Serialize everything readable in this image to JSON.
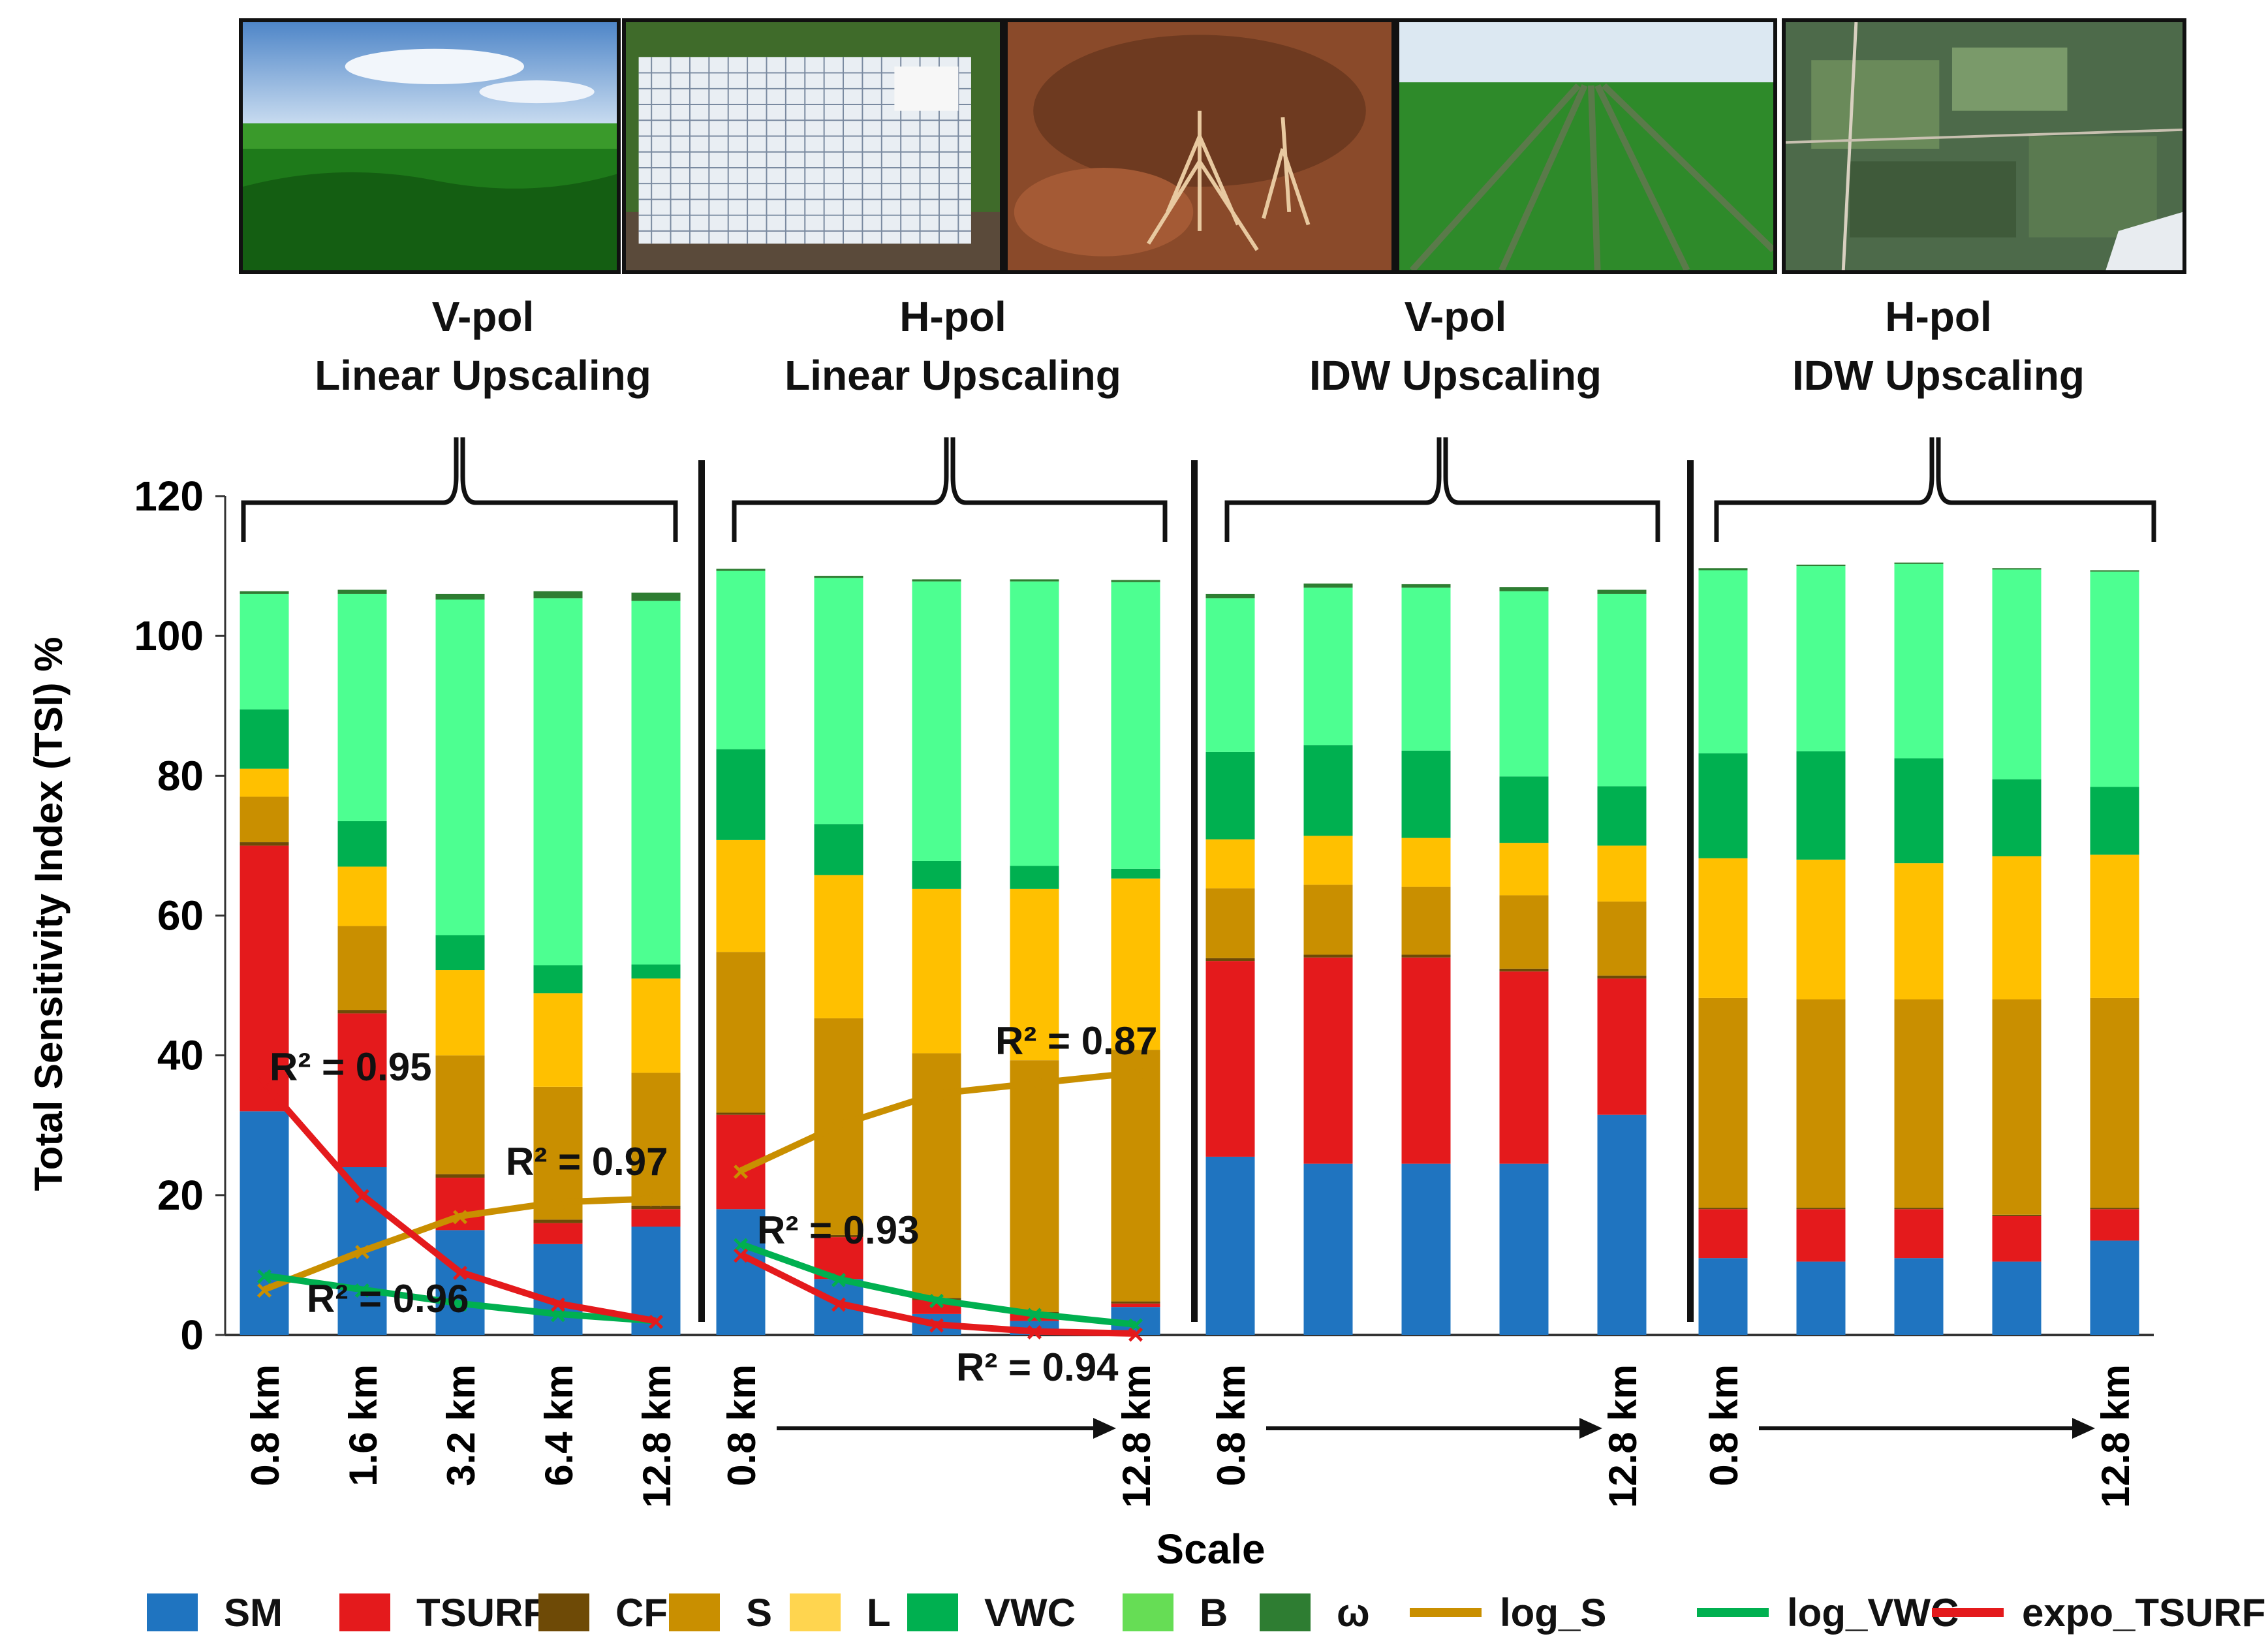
{
  "photos": [
    {
      "name": "corn-field-photo",
      "desc": "corn field"
    },
    {
      "name": "soil-grid-board-photo",
      "desc": "grid board"
    },
    {
      "name": "root-soil-photo",
      "desc": "roots in soil"
    },
    {
      "name": "soybean-rows-photo",
      "desc": "soybean rows"
    },
    {
      "name": "aerial-fields-photo",
      "desc": "aerial fields"
    }
  ],
  "headers": [
    {
      "line1": "V-pol",
      "line2": "Linear Upscaling"
    },
    {
      "line1": "H-pol",
      "line2": "Linear Upscaling"
    },
    {
      "line1": "V-pol",
      "line2": "IDW Upscaling"
    },
    {
      "line1": "H-pol",
      "line2": "IDW Upscaling"
    }
  ],
  "chart_data": {
    "type": "bar",
    "stacked": true,
    "ylabel": "Total Sensitivity Index (TSI) %",
    "xlabel": "Scale",
    "ylim": [
      0,
      120
    ],
    "yticks": [
      0,
      20,
      40,
      60,
      80,
      100,
      120
    ],
    "components": [
      "SM",
      "TSURF",
      "CF",
      "S",
      "L",
      "VWC",
      "B",
      "ω"
    ],
    "colors": {
      "SM": "#1f74c0",
      "TSURF": "#e41a1c",
      "CF": "#6e4a06",
      "S": "#c98f00",
      "L": "#ffc000",
      "VWC": "#00b050",
      "B": "#4dff91",
      "ω": "#2e7d32"
    },
    "panels": [
      {
        "title": "V-pol Linear Upscaling",
        "categories": [
          "0.8 km",
          "1.6 km",
          "3.2 km",
          "6.4 km",
          "12.8 km"
        ],
        "stacks": [
          {
            "SM": 32,
            "TSURF": 38,
            "CF": 0.5,
            "S": 6.5,
            "L": 4,
            "VWC": 8.5,
            "B": 16.5,
            "ω": 0.4
          },
          {
            "SM": 24,
            "TSURF": 22,
            "CF": 0.5,
            "S": 12,
            "L": 8.5,
            "VWC": 6.5,
            "B": 32.5,
            "ω": 0.6
          },
          {
            "SM": 15,
            "TSURF": 7.5,
            "CF": 0.5,
            "S": 17,
            "L": 12.2,
            "VWC": 5,
            "B": 48,
            "ω": 0.8
          },
          {
            "SM": 13,
            "TSURF": 3,
            "CF": 0.5,
            "S": 19,
            "L": 13.4,
            "VWC": 4,
            "B": 52.5,
            "ω": 1
          },
          {
            "SM": 15.5,
            "TSURF": 2.5,
            "CF": 0.5,
            "S": 19,
            "L": 13.5,
            "VWC": 2,
            "B": 52,
            "ω": 1.2
          }
        ],
        "fits": [
          {
            "name": "log_S",
            "color": "#c98f00",
            "points": [
              6.5,
              12,
              17,
              19,
              19.5
            ],
            "r2_label": "R² = 0.97"
          },
          {
            "name": "log_VWC",
            "color": "#00b050",
            "points": [
              8.5,
              6.5,
              4.5,
              3,
              2
            ],
            "r2_label": "R² = 0.96"
          },
          {
            "name": "expo_TSURF",
            "color": "#e41a1c",
            "points": [
              36,
              20,
              9,
              4.5,
              2
            ],
            "r2_label": "R² = 0.95"
          }
        ],
        "xticks": [
          "0.8 km",
          "1.6 km",
          "3.2 km",
          "6.4 km",
          "12.8 km"
        ],
        "arrow": false
      },
      {
        "title": "H-pol Linear Upscaling",
        "categories": [
          "0.8 km",
          "",
          "",
          "",
          "12.8 km"
        ],
        "stacks": [
          {
            "SM": 18,
            "TSURF": 13.5,
            "CF": 0.3,
            "S": 23,
            "L": 16,
            "VWC": 13,
            "B": 25.5,
            "ω": 0.3
          },
          {
            "SM": 8,
            "TSURF": 6,
            "CF": 0.3,
            "S": 31,
            "L": 20.5,
            "VWC": 7.3,
            "B": 35.2,
            "ω": 0.3
          },
          {
            "SM": 3,
            "TSURF": 2,
            "CF": 0.3,
            "S": 35,
            "L": 23.5,
            "VWC": 4,
            "B": 40,
            "ω": 0.3
          },
          {
            "SM": 2,
            "TSURF": 1,
            "CF": 0.3,
            "S": 36,
            "L": 24.5,
            "VWC": 3.3,
            "B": 40.7,
            "ω": 0.3
          },
          {
            "SM": 4,
            "TSURF": 0.5,
            "CF": 0.3,
            "S": 36,
            "L": 24.5,
            "VWC": 1.4,
            "B": 41,
            "ω": 0.3
          }
        ],
        "fits": [
          {
            "name": "log_S",
            "color": "#c98f00",
            "points": [
              23.5,
              30,
              34.5,
              36,
              37.5
            ],
            "r2_label": "R² = 0.87"
          },
          {
            "name": "log_VWC",
            "color": "#00b050",
            "points": [
              13,
              8,
              5,
              3,
              1.5
            ],
            "r2_label": "R² = 0.93"
          },
          {
            "name": "expo_TSURF",
            "color": "#e41a1c",
            "points": [
              11.5,
              4.5,
              1.5,
              0.5,
              0.2
            ],
            "r2_label": "R² = 0.94"
          }
        ],
        "xticks": [
          "0.8 km",
          "12.8 km"
        ],
        "arrow": true
      },
      {
        "title": "V-pol IDW Upscaling",
        "categories": [
          "0.8 km",
          "",
          "",
          "",
          "12.8 km"
        ],
        "stacks": [
          {
            "SM": 25.5,
            "TSURF": 28,
            "CF": 0.4,
            "S": 10,
            "L": 7,
            "VWC": 12.5,
            "B": 22,
            "ω": 0.6
          },
          {
            "SM": 24.5,
            "TSURF": 29.5,
            "CF": 0.4,
            "S": 10,
            "L": 7,
            "VWC": 13,
            "B": 22.5,
            "ω": 0.6
          },
          {
            "SM": 24.5,
            "TSURF": 29.5,
            "CF": 0.4,
            "S": 9.7,
            "L": 7,
            "VWC": 12.5,
            "B": 23.3,
            "ω": 0.5
          },
          {
            "SM": 24.5,
            "TSURF": 27.5,
            "CF": 0.4,
            "S": 10.5,
            "L": 7.5,
            "VWC": 9.5,
            "B": 26.5,
            "ω": 0.6
          },
          {
            "SM": 31.5,
            "TSURF": 19.5,
            "CF": 0.4,
            "S": 10.6,
            "L": 8,
            "VWC": 8.5,
            "B": 27.5,
            "ω": 0.6
          }
        ],
        "fits": [],
        "xticks": [
          "0.8 km",
          "12.8 km"
        ],
        "arrow": true
      },
      {
        "title": "H-pol IDW Upscaling",
        "categories": [
          "0.8 km",
          "",
          "",
          "",
          "12.8 km"
        ],
        "stacks": [
          {
            "SM": 11,
            "TSURF": 7,
            "CF": 0.2,
            "S": 30,
            "L": 20,
            "VWC": 15,
            "B": 26.2,
            "ω": 0.3
          },
          {
            "SM": 10.5,
            "TSURF": 7.5,
            "CF": 0.2,
            "S": 29.8,
            "L": 20,
            "VWC": 15.5,
            "B": 26.5,
            "ω": 0.2
          },
          {
            "SM": 11,
            "TSURF": 7,
            "CF": 0.2,
            "S": 29.8,
            "L": 19.5,
            "VWC": 15,
            "B": 27.8,
            "ω": 0.2
          },
          {
            "SM": 10.5,
            "TSURF": 6.5,
            "CF": 0.2,
            "S": 30.8,
            "L": 20.5,
            "VWC": 11,
            "B": 30,
            "ω": 0.2
          },
          {
            "SM": 13.5,
            "TSURF": 4.5,
            "CF": 0.2,
            "S": 30,
            "L": 20.5,
            "VWC": 9.7,
            "B": 30.8,
            "ω": 0.2
          }
        ],
        "fits": [],
        "xticks": [
          "0.8 km",
          "12.8 km"
        ],
        "arrow": true
      }
    ]
  },
  "legend": [
    {
      "label": "SM",
      "kind": "box",
      "color": "#1f74c0"
    },
    {
      "label": "TSURF",
      "kind": "box",
      "color": "#e41a1c"
    },
    {
      "label": "CF",
      "kind": "box",
      "color": "#6e4a06"
    },
    {
      "label": "S",
      "kind": "box",
      "color": "#c98f00"
    },
    {
      "label": "L",
      "kind": "box",
      "color": "#ffd54f"
    },
    {
      "label": "VWC",
      "kind": "box",
      "color": "#00b050"
    },
    {
      "label": "B",
      "kind": "box",
      "color": "#66dd55"
    },
    {
      "label": "ω",
      "kind": "box",
      "color": "#2e7d32"
    },
    {
      "label": "log_S",
      "kind": "line",
      "color": "#c98f00"
    },
    {
      "label": "log_VWC",
      "kind": "line",
      "color": "#00b050"
    },
    {
      "label": "expo_TSURF",
      "kind": "line",
      "color": "#e41a1c"
    }
  ]
}
